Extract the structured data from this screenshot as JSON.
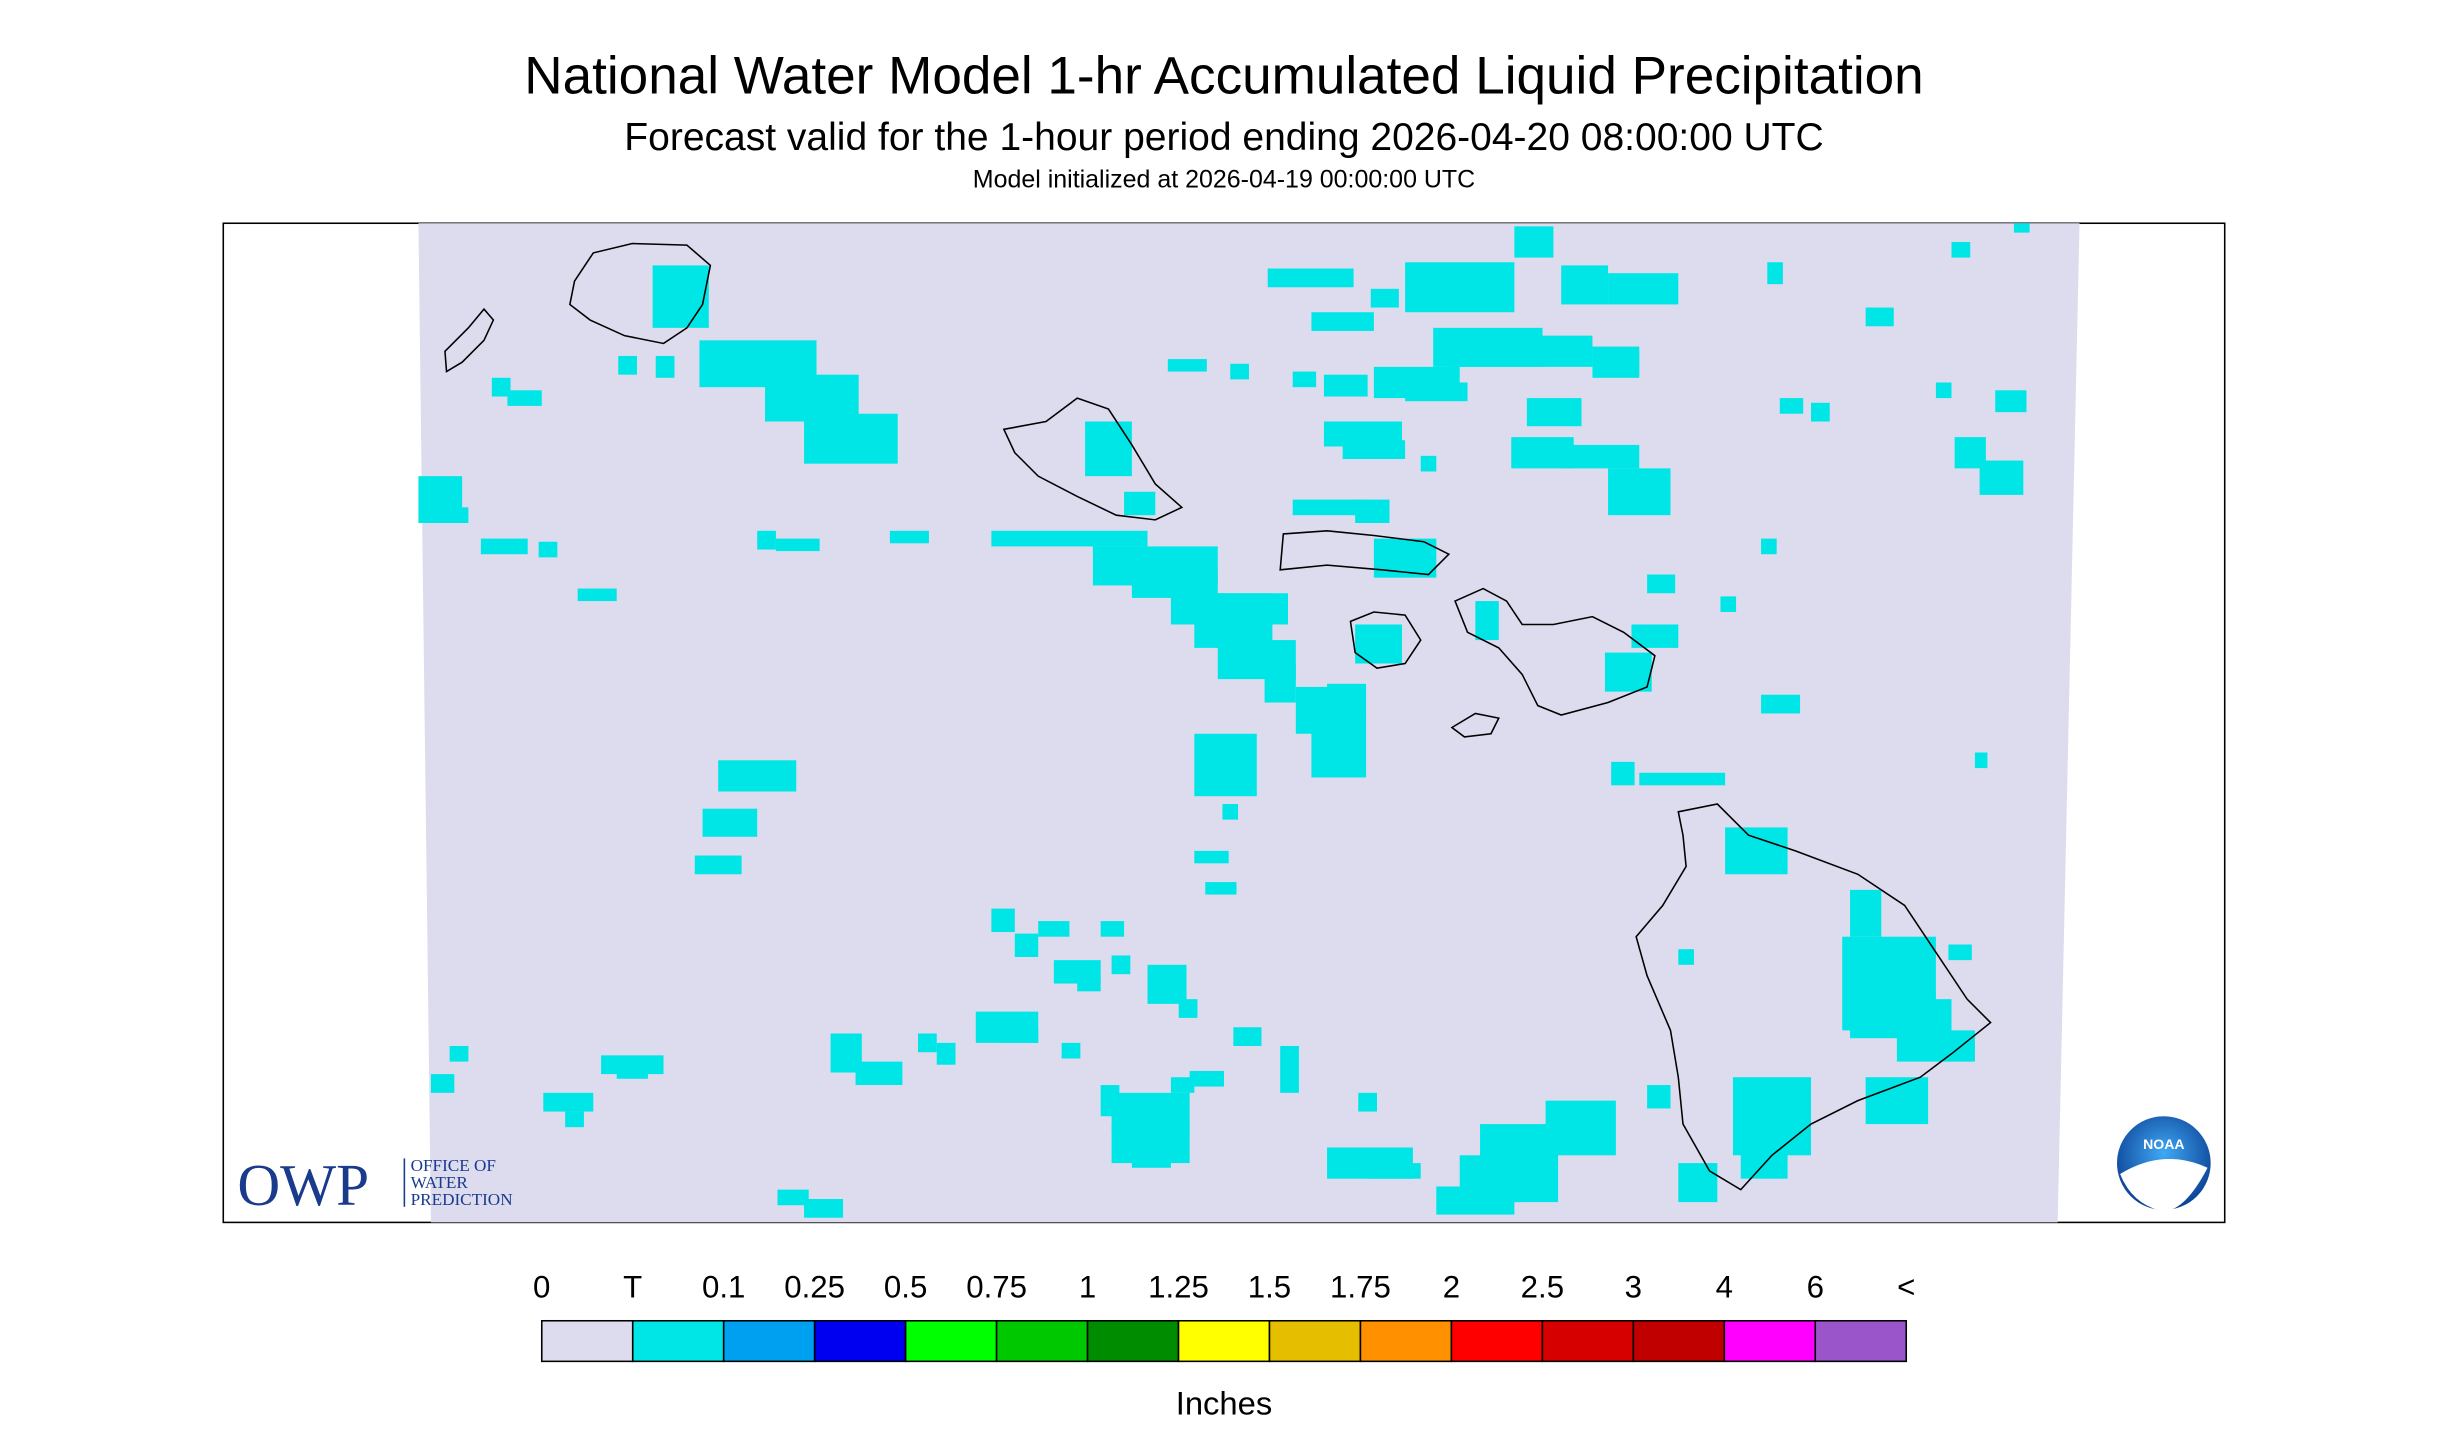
{
  "header": {
    "title": "National Water Model 1-hr Accumulated Liquid Precipitation",
    "subtitle": "Forecast valid for the 1-hour period ending 2026-04-20 08:00:00 UTC",
    "initialized": "Model initialized at 2026-04-19 00:00:00 UTC"
  },
  "legend": {
    "labels": [
      "0",
      "T",
      "0.1",
      "0.25",
      "0.5",
      "0.75",
      "1",
      "1.25",
      "1.5",
      "1.75",
      "2",
      "2.5",
      "3",
      "4",
      "6",
      "<"
    ],
    "colors": [
      "#dcdcee",
      "#00e6e6",
      "#00a0f0",
      "#0000f0",
      "#00ff00",
      "#00c800",
      "#008c00",
      "#ffff00",
      "#e6be00",
      "#ff9000",
      "#ff0000",
      "#d60000",
      "#c00000",
      "#ff00ff",
      "#9955c9"
    ],
    "units": "Inches"
  },
  "logos": {
    "owp": "OWP",
    "owp_lines": [
      "OFFICE OF",
      "WATER",
      "PREDICTION"
    ],
    "noaa": "NOAA"
  }
}
